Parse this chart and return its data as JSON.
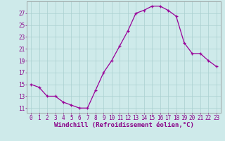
{
  "x": [
    0,
    1,
    2,
    3,
    4,
    5,
    6,
    7,
    8,
    9,
    10,
    11,
    12,
    13,
    14,
    15,
    16,
    17,
    18,
    19,
    20,
    21,
    22,
    23
  ],
  "y": [
    15,
    14.5,
    13,
    13,
    12,
    11.5,
    11,
    11,
    14,
    17,
    19,
    21.5,
    24,
    27,
    27.5,
    28.2,
    28.2,
    27.5,
    26.5,
    22,
    20.2,
    20.2,
    19,
    18
  ],
  "line_color": "#990099",
  "marker": "+",
  "marker_size": 3,
  "background_color": "#ceeaea",
  "grid_color": "#aacfcf",
  "xlabel": "Windchill (Refroidissement éolien,°C)",
  "yticks": [
    11,
    13,
    15,
    17,
    19,
    21,
    23,
    25,
    27
  ],
  "xticks": [
    0,
    1,
    2,
    3,
    4,
    5,
    6,
    7,
    8,
    9,
    10,
    11,
    12,
    13,
    14,
    15,
    16,
    17,
    18,
    19,
    20,
    21,
    22,
    23
  ],
  "ylim": [
    10.2,
    29.0
  ],
  "xlim": [
    -0.5,
    23.5
  ],
  "xlabel_fontsize": 6.5,
  "tick_fontsize": 5.5
}
